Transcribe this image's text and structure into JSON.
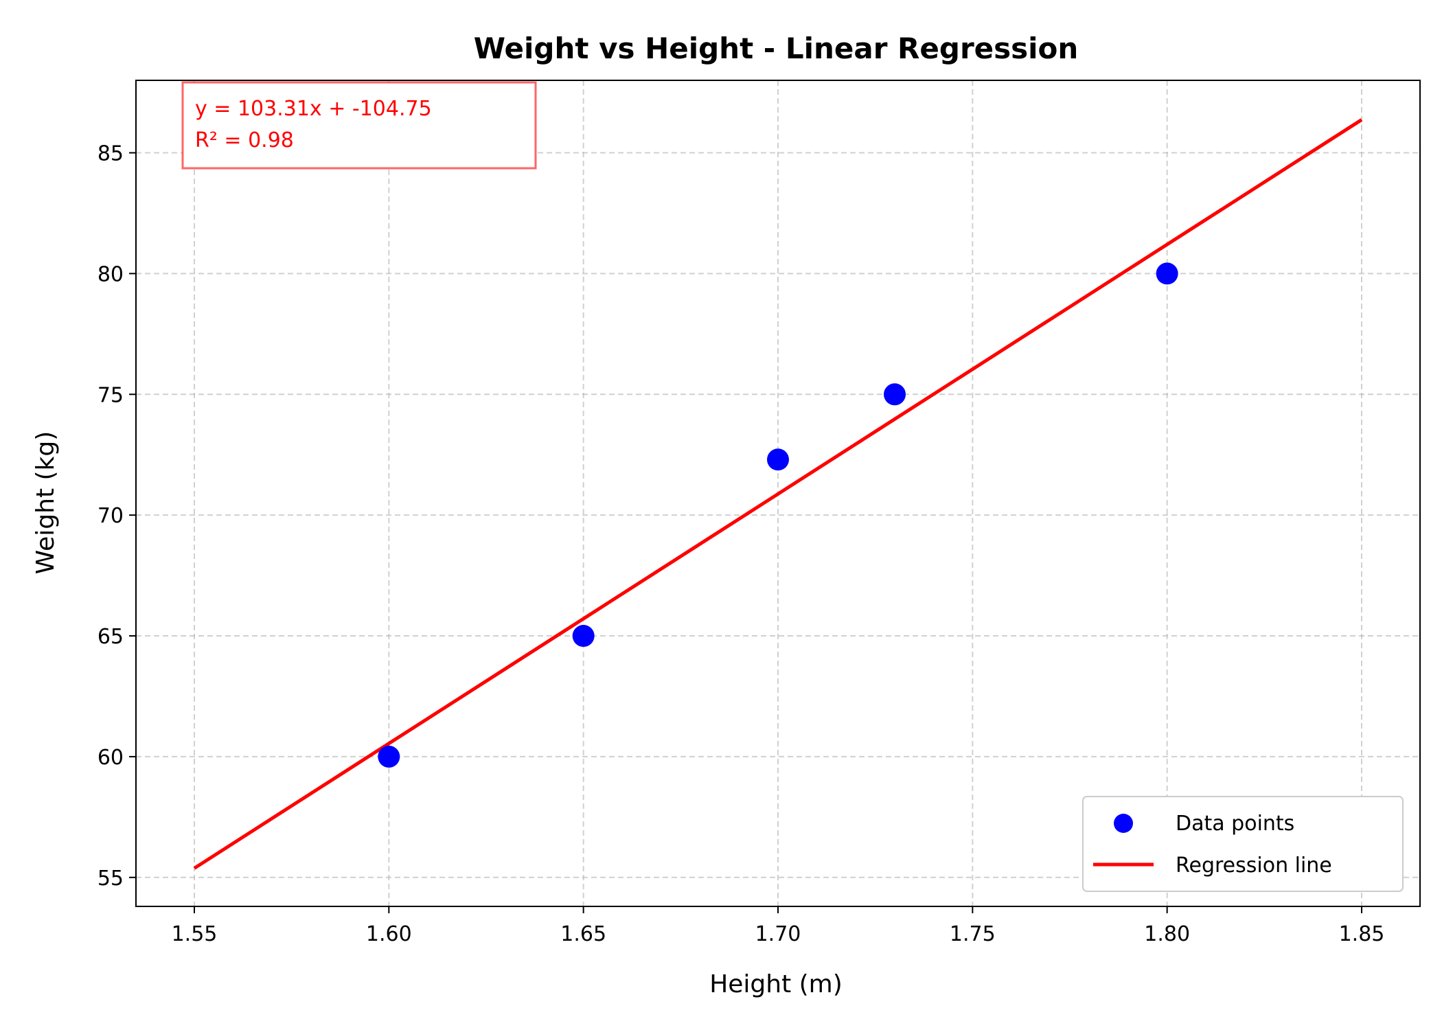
{
  "chart_data": {
    "type": "scatter",
    "title": "Weight vs Height - Linear Regression",
    "xlabel": "Height (m)",
    "ylabel": "Weight (kg)",
    "xlim": [
      1.535,
      1.865
    ],
    "ylim": [
      53.8,
      88.0
    ],
    "xticks": [
      1.55,
      1.6,
      1.65,
      1.7,
      1.75,
      1.8,
      1.85
    ],
    "xtick_labels": [
      "1.55",
      "1.60",
      "1.65",
      "1.70",
      "1.75",
      "1.80",
      "1.85"
    ],
    "yticks": [
      55,
      60,
      65,
      70,
      75,
      80,
      85
    ],
    "ytick_labels": [
      "55",
      "60",
      "65",
      "70",
      "75",
      "80",
      "85"
    ],
    "grid": true,
    "legend_position": "lower-right",
    "series": [
      {
        "name": "Data points",
        "type": "scatter",
        "color": "#0000ff",
        "x": [
          1.6,
          1.65,
          1.7,
          1.73,
          1.8
        ],
        "y": [
          60.0,
          65.0,
          72.3,
          75.0,
          80.0
        ]
      },
      {
        "name": "Regression line",
        "type": "line",
        "color": "#ff0000",
        "x": [
          1.55,
          1.85
        ],
        "y": [
          55.38,
          86.37
        ]
      }
    ],
    "annotation": {
      "lines": [
        "y = 103.31x + -104.75",
        "R² = 0.98"
      ],
      "color": "#ff0000",
      "position": "top-left"
    }
  }
}
